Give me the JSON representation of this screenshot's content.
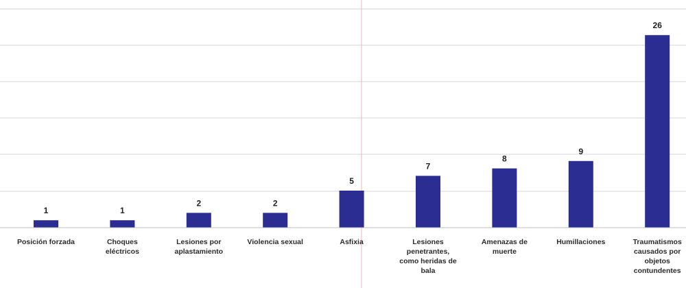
{
  "chart_data": {
    "type": "bar",
    "categories": [
      [
        "Posición  forzada"
      ],
      [
        "Choques",
        "eléctricos"
      ],
      [
        "Lesiones por",
        "aplastamiento"
      ],
      [
        "Violencia sexual"
      ],
      [
        "Asfixia"
      ],
      [
        "Lesiones",
        "penetrantes,",
        "como heridas de",
        "bala"
      ],
      [
        "Amenazas de",
        "muerte"
      ],
      [
        "Humillaciones"
      ],
      [
        "Traumatismos",
        "causados por",
        "objetos",
        "contundentes"
      ]
    ],
    "values": [
      1,
      1,
      2,
      2,
      5,
      7,
      8,
      9,
      26
    ],
    "ylim": [
      0,
      30
    ],
    "grid": true,
    "colors": {
      "bar": "#2b2d92",
      "grid": "#d4d4d4",
      "axis": "#bdbdbd",
      "divider": "#e6b8c0"
    }
  }
}
